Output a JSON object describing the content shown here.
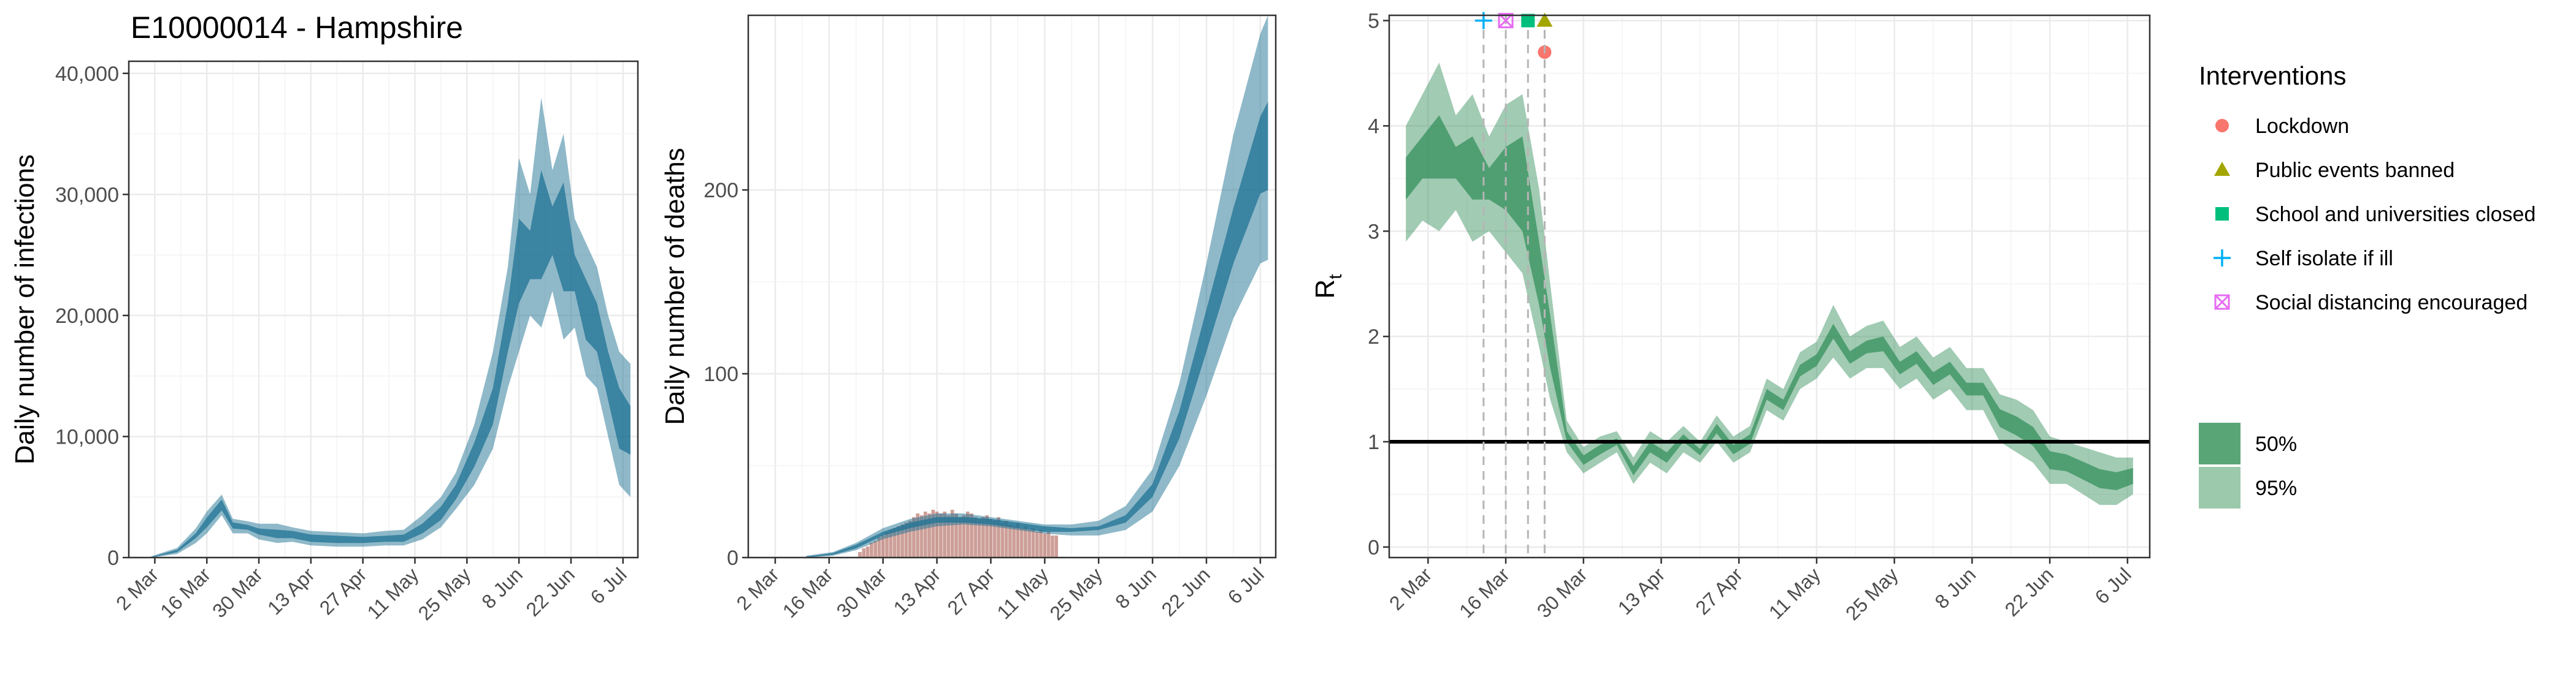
{
  "figure": {
    "title": "E10000014 - Hampshire",
    "colors": {
      "infections_band": "#1f7394",
      "deaths_band": "#1f7394",
      "observed_deaths": "#b8766c",
      "rt_band": "#2e8b57",
      "grid": "#ebebeb",
      "threshold_line": "#000000"
    }
  },
  "date_ticks": [
    "2 Mar",
    "16 Mar",
    "30 Mar",
    "13 Apr",
    "27 Apr",
    "11 May",
    "25 May",
    "8 Jun",
    "22 Jun",
    "6 Jul"
  ],
  "chart_data": [
    {
      "type": "area",
      "name": "infections",
      "ylabel": "Daily number of infections",
      "ylim": [
        0,
        41000
      ],
      "y_ticks": [
        0,
        10000,
        20000,
        30000,
        40000
      ],
      "y_tick_labels": [
        "0",
        "10,000",
        "20,000",
        "30,000",
        "40,000"
      ],
      "x_range": [
        "2020-02-24",
        "2020-07-10"
      ],
      "grid": true,
      "series": [
        {
          "band": "95%",
          "x": [
            "2020-03-01",
            "2020-03-08",
            "2020-03-13",
            "2020-03-16",
            "2020-03-20",
            "2020-03-23",
            "2020-03-27",
            "2020-03-30",
            "2020-04-04",
            "2020-04-08",
            "2020-04-13",
            "2020-04-20",
            "2020-04-27",
            "2020-05-03",
            "2020-05-08",
            "2020-05-13",
            "2020-05-18",
            "2020-05-22",
            "2020-05-27",
            "2020-06-01",
            "2020-06-05",
            "2020-06-08",
            "2020-06-11",
            "2020-06-14",
            "2020-06-17",
            "2020-06-20",
            "2020-06-23",
            "2020-06-26",
            "2020-06-29",
            "2020-07-02",
            "2020-07-05",
            "2020-07-08"
          ],
          "low": [
            0,
            300,
            1200,
            2000,
            3500,
            2000,
            2000,
            1500,
            1200,
            1300,
            1000,
            900,
            900,
            1000,
            1000,
            1500,
            2500,
            4000,
            6000,
            9000,
            14000,
            17000,
            20000,
            19000,
            22000,
            18000,
            19000,
            15000,
            14000,
            10000,
            6000,
            5000
          ],
          "high": [
            100,
            800,
            2400,
            3800,
            5200,
            3200,
            3000,
            2800,
            2800,
            2500,
            2200,
            2100,
            2000,
            2200,
            2300,
            3500,
            5000,
            7000,
            11000,
            17000,
            24000,
            33000,
            30000,
            38000,
            32000,
            35000,
            28000,
            26000,
            24000,
            20000,
            17000,
            16000
          ]
        },
        {
          "band": "50%",
          "x": [
            "2020-03-01",
            "2020-03-08",
            "2020-03-13",
            "2020-03-16",
            "2020-03-20",
            "2020-03-23",
            "2020-03-27",
            "2020-03-30",
            "2020-04-04",
            "2020-04-08",
            "2020-04-13",
            "2020-04-20",
            "2020-04-27",
            "2020-05-03",
            "2020-05-08",
            "2020-05-13",
            "2020-05-18",
            "2020-05-22",
            "2020-05-27",
            "2020-06-01",
            "2020-06-05",
            "2020-06-08",
            "2020-06-11",
            "2020-06-14",
            "2020-06-17",
            "2020-06-20",
            "2020-06-23",
            "2020-06-26",
            "2020-06-29",
            "2020-07-02",
            "2020-07-05",
            "2020-07-08"
          ],
          "low": [
            0,
            450,
            1600,
            2500,
            3900,
            2400,
            2300,
            1900,
            1600,
            1600,
            1300,
            1200,
            1200,
            1300,
            1300,
            2000,
            3100,
            4800,
            7500,
            11000,
            17000,
            21000,
            23000,
            23000,
            25000,
            22000,
            22000,
            18000,
            17000,
            13000,
            9000,
            8500
          ],
          "high": [
            50,
            650,
            2000,
            3300,
            4800,
            2900,
            2700,
            2400,
            2300,
            2200,
            1900,
            1800,
            1700,
            1800,
            1900,
            2800,
            4200,
            6000,
            9500,
            14000,
            21000,
            28000,
            27000,
            32000,
            29000,
            31000,
            25000,
            23000,
            21000,
            17000,
            14000,
            12500
          ]
        }
      ]
    },
    {
      "type": "area",
      "name": "deaths",
      "ylabel": "Daily number of deaths",
      "ylim": [
        0,
        295
      ],
      "y_ticks": [
        0,
        100,
        200
      ],
      "y_tick_labels": [
        "0",
        "100",
        "200"
      ],
      "x_range": [
        "2020-02-24",
        "2020-07-10"
      ],
      "grid": true,
      "series": [
        {
          "band": "95%",
          "x": [
            "2020-03-10",
            "2020-03-17",
            "2020-03-23",
            "2020-03-30",
            "2020-04-06",
            "2020-04-13",
            "2020-04-20",
            "2020-04-27",
            "2020-05-04",
            "2020-05-11",
            "2020-05-18",
            "2020-05-25",
            "2020-06-01",
            "2020-06-08",
            "2020-06-15",
            "2020-06-22",
            "2020-06-29",
            "2020-07-06",
            "2020-07-08"
          ],
          "low": [
            0,
            1,
            4,
            10,
            14,
            17,
            18,
            17,
            15,
            13,
            12,
            12,
            15,
            25,
            50,
            88,
            130,
            160,
            162
          ],
          "high": [
            1,
            3,
            8,
            16,
            21,
            24,
            24,
            22,
            20,
            18,
            18,
            20,
            28,
            48,
            95,
            160,
            230,
            285,
            295
          ]
        },
        {
          "band": "50%",
          "x": [
            "2020-03-10",
            "2020-03-17",
            "2020-03-23",
            "2020-03-30",
            "2020-04-06",
            "2020-04-13",
            "2020-04-20",
            "2020-04-27",
            "2020-05-04",
            "2020-05-11",
            "2020-05-18",
            "2020-05-25",
            "2020-06-01",
            "2020-06-08",
            "2020-06-15",
            "2020-06-22",
            "2020-06-29",
            "2020-07-06",
            "2020-07-08"
          ],
          "low": [
            0,
            1.5,
            5,
            12,
            16,
            19,
            19,
            18,
            16,
            14,
            14,
            15,
            19,
            33,
            65,
            112,
            160,
            198,
            200
          ],
          "high": [
            0.5,
            2.5,
            7,
            14,
            19,
            22,
            22,
            21,
            19,
            17,
            16,
            17,
            23,
            40,
            80,
            135,
            190,
            240,
            248
          ]
        }
      ],
      "observed_deaths": {
        "x": [
          "2020-03-24",
          "2020-03-25",
          "2020-03-26",
          "2020-03-27",
          "2020-03-28",
          "2020-03-29",
          "2020-03-30",
          "2020-03-31",
          "2020-04-01",
          "2020-04-02",
          "2020-04-03",
          "2020-04-04",
          "2020-04-05",
          "2020-04-06",
          "2020-04-07",
          "2020-04-08",
          "2020-04-09",
          "2020-04-10",
          "2020-04-11",
          "2020-04-12",
          "2020-04-13",
          "2020-04-14",
          "2020-04-15",
          "2020-04-16",
          "2020-04-17",
          "2020-04-18",
          "2020-04-19",
          "2020-04-20",
          "2020-04-21",
          "2020-04-22",
          "2020-04-23",
          "2020-04-24",
          "2020-04-25",
          "2020-04-26",
          "2020-04-27",
          "2020-04-28",
          "2020-04-29",
          "2020-04-30",
          "2020-05-01",
          "2020-05-02",
          "2020-05-03",
          "2020-05-04",
          "2020-05-05",
          "2020-05-06",
          "2020-05-07",
          "2020-05-08",
          "2020-05-09",
          "2020-05-10",
          "2020-05-11",
          "2020-05-12",
          "2020-05-13",
          "2020-05-14"
        ],
        "values": [
          3,
          5,
          6,
          8,
          9,
          11,
          12,
          14,
          15,
          16,
          17,
          18,
          19,
          20,
          22,
          24,
          23,
          25,
          24,
          26,
          25,
          24,
          25,
          23,
          26,
          24,
          22,
          23,
          25,
          24,
          22,
          21,
          22,
          23,
          21,
          20,
          22,
          19,
          20,
          18,
          17,
          19,
          16,
          17,
          15,
          16,
          14,
          15,
          13,
          14,
          12,
          12
        ]
      }
    },
    {
      "type": "area",
      "name": "rt",
      "ylabel": "R",
      "ylabel_sub": "t",
      "ylim": [
        -0.1,
        5.05
      ],
      "y_ticks": [
        0,
        1,
        2,
        3,
        4,
        5
      ],
      "y_tick_labels": [
        "0",
        "1",
        "2",
        "3",
        "4",
        "5"
      ],
      "x_range": [
        "2020-02-24",
        "2020-07-10"
      ],
      "grid": true,
      "threshold": 1,
      "series": [
        {
          "band": "95%",
          "x": [
            "2020-02-27",
            "2020-03-01",
            "2020-03-04",
            "2020-03-07",
            "2020-03-10",
            "2020-03-13",
            "2020-03-16",
            "2020-03-19",
            "2020-03-22",
            "2020-03-24",
            "2020-03-27",
            "2020-03-30",
            "2020-04-02",
            "2020-04-05",
            "2020-04-08",
            "2020-04-11",
            "2020-04-14",
            "2020-04-17",
            "2020-04-20",
            "2020-04-23",
            "2020-04-26",
            "2020-04-29",
            "2020-05-02",
            "2020-05-05",
            "2020-05-08",
            "2020-05-11",
            "2020-05-14",
            "2020-05-17",
            "2020-05-20",
            "2020-05-23",
            "2020-05-26",
            "2020-05-29",
            "2020-06-01",
            "2020-06-04",
            "2020-06-07",
            "2020-06-10",
            "2020-06-13",
            "2020-06-16",
            "2020-06-19",
            "2020-06-22",
            "2020-06-25",
            "2020-06-28",
            "2020-07-01",
            "2020-07-04",
            "2020-07-07"
          ],
          "low": [
            2.9,
            3.1,
            3.0,
            3.2,
            2.9,
            3.0,
            2.8,
            2.6,
            1.9,
            1.4,
            0.9,
            0.7,
            0.8,
            0.9,
            0.6,
            0.8,
            0.7,
            0.9,
            0.8,
            1.0,
            0.8,
            0.9,
            1.3,
            1.2,
            1.5,
            1.6,
            1.8,
            1.6,
            1.7,
            1.7,
            1.5,
            1.6,
            1.4,
            1.5,
            1.3,
            1.3,
            1.0,
            0.9,
            0.8,
            0.6,
            0.6,
            0.5,
            0.4,
            0.4,
            0.5
          ],
          "high": [
            4.0,
            4.3,
            4.6,
            4.1,
            4.3,
            3.9,
            4.2,
            4.3,
            3.4,
            2.5,
            1.2,
            0.95,
            1.05,
            1.1,
            0.85,
            1.1,
            1.0,
            1.15,
            1.0,
            1.25,
            1.05,
            1.15,
            1.6,
            1.5,
            1.85,
            1.95,
            2.3,
            2.0,
            2.1,
            2.15,
            1.9,
            2.0,
            1.8,
            1.9,
            1.7,
            1.7,
            1.45,
            1.4,
            1.3,
            1.05,
            1.0,
            0.95,
            0.9,
            0.85,
            0.85
          ]
        },
        {
          "band": "50%",
          "x": [
            "2020-02-27",
            "2020-03-01",
            "2020-03-04",
            "2020-03-07",
            "2020-03-10",
            "2020-03-13",
            "2020-03-16",
            "2020-03-19",
            "2020-03-22",
            "2020-03-24",
            "2020-03-27",
            "2020-03-30",
            "2020-04-02",
            "2020-04-05",
            "2020-04-08",
            "2020-04-11",
            "2020-04-14",
            "2020-04-17",
            "2020-04-20",
            "2020-04-23",
            "2020-04-26",
            "2020-04-29",
            "2020-05-02",
            "2020-05-05",
            "2020-05-08",
            "2020-05-11",
            "2020-05-14",
            "2020-05-17",
            "2020-05-20",
            "2020-05-23",
            "2020-05-26",
            "2020-05-29",
            "2020-06-01",
            "2020-06-04",
            "2020-06-07",
            "2020-06-10",
            "2020-06-13",
            "2020-06-16",
            "2020-06-19",
            "2020-06-22",
            "2020-06-25",
            "2020-06-28",
            "2020-07-01",
            "2020-07-04",
            "2020-07-07"
          ],
          "low": [
            3.3,
            3.5,
            3.5,
            3.5,
            3.3,
            3.3,
            3.2,
            3.0,
            2.3,
            1.7,
            1.0,
            0.78,
            0.88,
            0.97,
            0.68,
            0.9,
            0.8,
            1.0,
            0.87,
            1.08,
            0.88,
            0.98,
            1.4,
            1.3,
            1.62,
            1.72,
            1.98,
            1.74,
            1.84,
            1.86,
            1.64,
            1.74,
            1.54,
            1.64,
            1.44,
            1.44,
            1.14,
            1.06,
            0.96,
            0.74,
            0.72,
            0.64,
            0.56,
            0.54,
            0.6
          ],
          "high": [
            3.7,
            3.9,
            4.1,
            3.8,
            3.9,
            3.6,
            3.8,
            3.9,
            2.9,
            2.2,
            1.1,
            0.87,
            0.97,
            1.03,
            0.77,
            1.0,
            0.9,
            1.07,
            0.93,
            1.17,
            0.97,
            1.07,
            1.5,
            1.4,
            1.73,
            1.83,
            2.12,
            1.86,
            1.96,
            2.0,
            1.76,
            1.86,
            1.66,
            1.76,
            1.56,
            1.56,
            1.31,
            1.24,
            1.14,
            0.91,
            0.88,
            0.81,
            0.74,
            0.71,
            0.75
          ]
        }
      ],
      "interventions": [
        {
          "label": "Lockdown",
          "date": "2020-03-23",
          "marker": "circle",
          "color": "#f8766d",
          "y": 4.7
        },
        {
          "label": "Public events banned",
          "date": "2020-03-23",
          "marker": "triangle",
          "color": "#a3a500",
          "y": 5.0
        },
        {
          "label": "School and universities closed",
          "date": "2020-03-20",
          "marker": "square",
          "color": "#00bf7d",
          "y": 5.0
        },
        {
          "label": "Self isolate if ill",
          "date": "2020-03-12",
          "marker": "plus",
          "color": "#00b0f6",
          "y": 5.0
        },
        {
          "label": "Social distancing encouraged",
          "date": "2020-03-16",
          "marker": "square-x",
          "color": "#e76bf3",
          "y": 5.0
        }
      ]
    }
  ],
  "legend": {
    "interventions_title": "Interventions",
    "items": [
      {
        "label": "Lockdown",
        "marker": "circle",
        "color": "#f8766d"
      },
      {
        "label": "Public events banned",
        "marker": "triangle",
        "color": "#a3a500"
      },
      {
        "label": "School and universities closed",
        "marker": "square",
        "color": "#00bf7d"
      },
      {
        "label": "Self isolate if ill",
        "marker": "plus",
        "color": "#00b0f6"
      },
      {
        "label": "Social distancing encouraged",
        "marker": "square-x",
        "color": "#e76bf3"
      }
    ],
    "bands": [
      {
        "label": "50%",
        "color": "#5aa576"
      },
      {
        "label": "95%",
        "color": "#9cc9ac"
      }
    ]
  }
}
